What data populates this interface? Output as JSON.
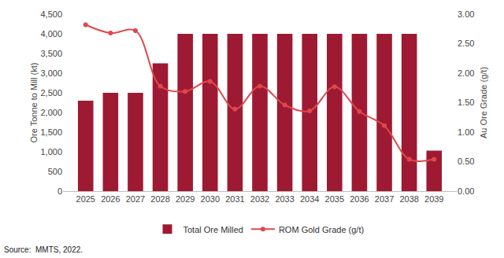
{
  "chart_data": {
    "type": "bar",
    "categories": [
      "2025",
      "2026",
      "2027",
      "2028",
      "2029",
      "2030",
      "2031",
      "2032",
      "2033",
      "2034",
      "2035",
      "2036",
      "2037",
      "2038",
      "2039"
    ],
    "series": [
      {
        "name": "Total Ore Milled",
        "type": "bar",
        "color": "#9e1a32",
        "values": [
          2300,
          2500,
          2500,
          3250,
          4000,
          4000,
          4000,
          4000,
          4000,
          4000,
          4000,
          4000,
          4000,
          4000,
          1030
        ]
      },
      {
        "name": "ROM Gold Grade (g/t)",
        "type": "line",
        "axis": "y2",
        "color": "#e0474c",
        "marker": "circle",
        "line_style": "spline",
        "values": [
          2.82,
          2.68,
          2.72,
          1.78,
          1.69,
          1.86,
          1.39,
          1.78,
          1.46,
          1.36,
          1.77,
          1.35,
          1.11,
          0.54,
          0.54
        ]
      }
    ],
    "ylabel": "Ore Tonne to Mill (kt)",
    "y2label": "Au Ore Grade (g/t)",
    "ylim": [
      0,
      4500
    ],
    "yticks": [
      0,
      500,
      {
        "value": 1000,
        "label": "1,000"
      },
      {
        "value": 1500,
        "label": "1,500"
      },
      {
        "value": 2000,
        "label": "2,000"
      },
      {
        "value": 2500,
        "label": "2,500"
      },
      {
        "value": 3000,
        "label": "3,000"
      },
      {
        "value": 3500,
        "label": "3,500"
      },
      {
        "value": 4000,
        "label": "4,000"
      },
      {
        "value": 4500,
        "label": "4,500"
      }
    ],
    "y2lim": [
      0,
      3
    ],
    "y2ticks": [
      {
        "value": 0,
        "label": "0.00"
      },
      {
        "value": 0.5,
        "label": "0.50"
      },
      {
        "value": 1,
        "label": "1.00"
      },
      {
        "value": 1.5,
        "label": "1.50"
      },
      {
        "value": 2,
        "label": "2.00"
      },
      {
        "value": 2.5,
        "label": "2.50"
      },
      {
        "value": 3,
        "label": "3.00"
      }
    ],
    "grid": false,
    "legend": "bottom",
    "annotations": [
      "Source:  MMTS, 2022."
    ]
  }
}
